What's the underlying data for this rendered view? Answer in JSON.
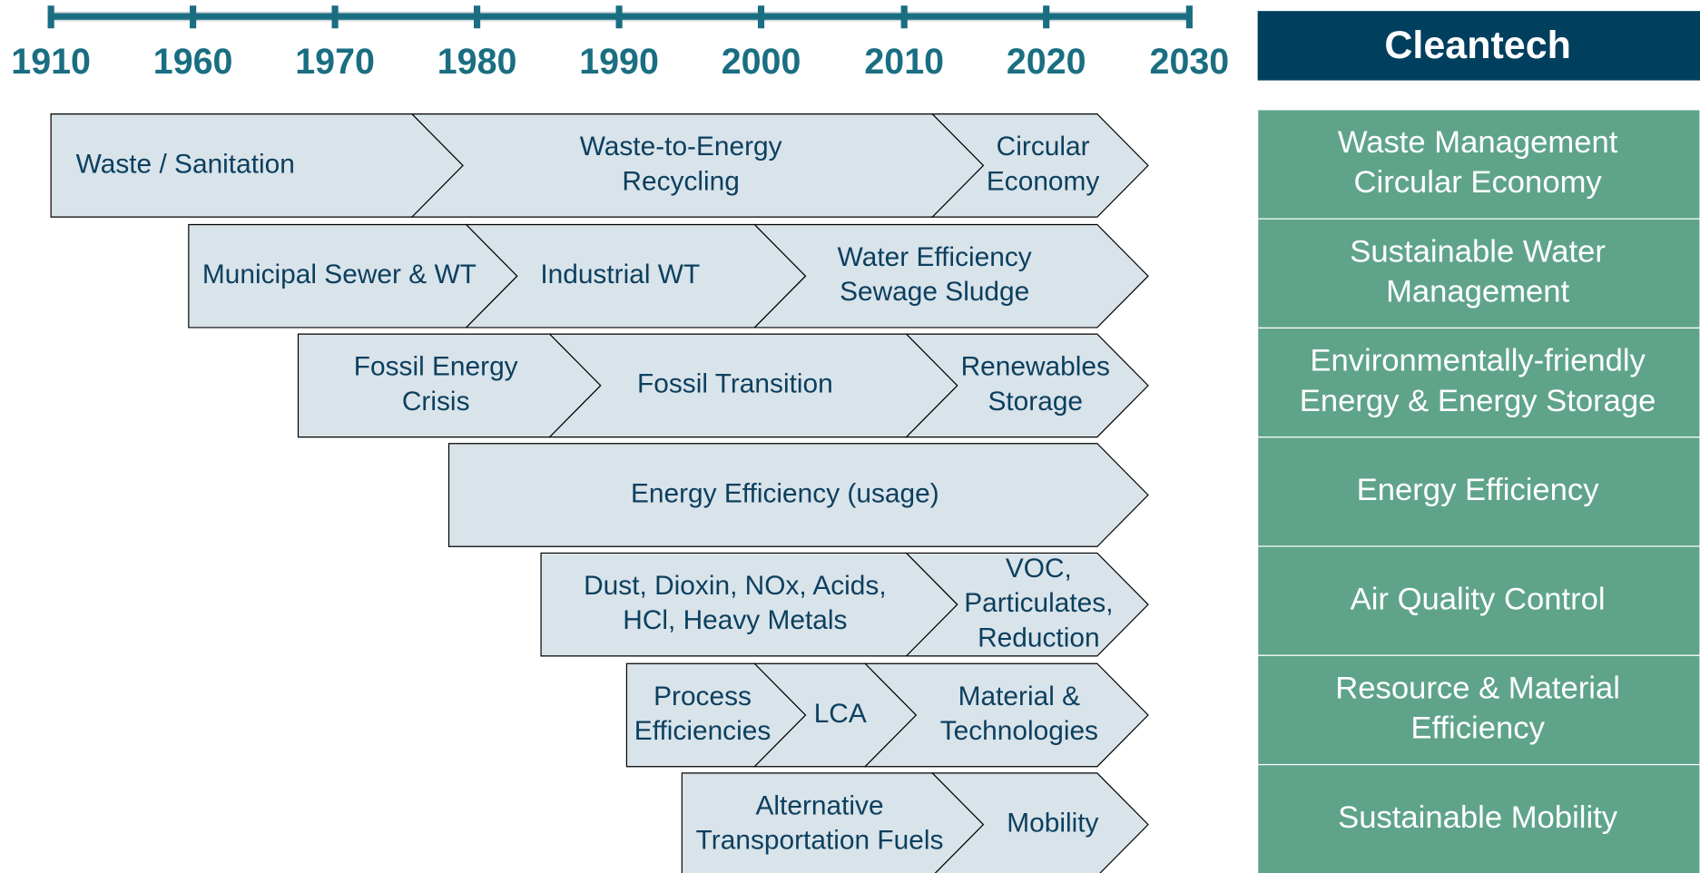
{
  "timeline": {
    "years": [
      1910,
      1960,
      1970,
      1980,
      1990,
      2000,
      2010,
      2020,
      2030
    ]
  },
  "header": {
    "title": "Cleantech"
  },
  "categories": [
    [
      "Waste Management",
      "Circular Economy"
    ],
    [
      "Sustainable Water",
      "Management"
    ],
    [
      "Environmentally-friendly",
      "Energy & Energy Storage"
    ],
    [
      "Energy Efficiency"
    ],
    [
      "Air Quality Control"
    ],
    [
      "Resource & Material",
      "Efficiency"
    ],
    [
      "Sustainable Mobility"
    ]
  ],
  "rows": [
    {
      "segments": [
        {
          "lines": [
            "Waste / Sanitation"
          ]
        },
        {
          "lines": [
            "Waste-to-Energy",
            "Recycling"
          ]
        },
        {
          "lines": [
            "Circular",
            "Economy"
          ]
        }
      ]
    },
    {
      "segments": [
        {
          "lines": [
            "Municipal Sewer & WT"
          ]
        },
        {
          "lines": [
            "Industrial WT"
          ]
        },
        {
          "lines": [
            "Water Efficiency",
            "Sewage Sludge"
          ]
        }
      ]
    },
    {
      "segments": [
        {
          "lines": [
            "Fossil Energy",
            "Crisis"
          ]
        },
        {
          "lines": [
            "Fossil Transition"
          ]
        },
        {
          "lines": [
            "Renewables",
            "Storage"
          ]
        }
      ]
    },
    {
      "segments": [
        {
          "lines": [
            "Energy Efficiency (usage)"
          ]
        }
      ]
    },
    {
      "segments": [
        {
          "lines": [
            "Dust, Dioxin, NOx, Acids,",
            "HCl, Heavy Metals"
          ]
        },
        {
          "lines": [
            "VOC,",
            "Particulates,",
            "Reduction"
          ]
        }
      ]
    },
    {
      "segments": [
        {
          "lines": [
            "Process",
            "Efficiencies"
          ]
        },
        {
          "lines": [
            "LCA"
          ]
        },
        {
          "lines": [
            "Material &",
            "Technologies"
          ]
        }
      ]
    },
    {
      "segments": [
        {
          "lines": [
            "Alternative",
            "Transportation Fuels"
          ]
        },
        {
          "lines": [
            "Mobility"
          ]
        }
      ]
    }
  ]
}
